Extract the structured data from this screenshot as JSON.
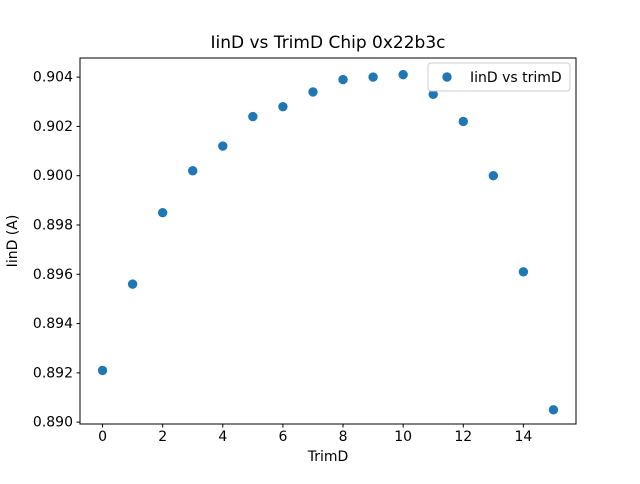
{
  "figure": {
    "background": "#ffffff",
    "spine_color": "#000000",
    "legend_border_color": "#cccccc",
    "legend_background": "#ffffff"
  },
  "chart_data": {
    "type": "scatter",
    "title": "IinD vs TrimD Chip 0x22b3c",
    "xlabel": "TrimD",
    "ylabel": "IinD (A)",
    "series": [
      {
        "name": "IinD vs trimD",
        "color": "#1f77b4",
        "marker": "circle",
        "x": [
          0,
          1,
          2,
          3,
          4,
          5,
          6,
          7,
          8,
          9,
          10,
          11,
          12,
          13,
          14,
          15
        ],
        "y": [
          0.8921,
          0.8956,
          0.8985,
          0.9002,
          0.9012,
          0.9024,
          0.9028,
          0.9034,
          0.9039,
          0.904,
          0.9041,
          0.9033,
          0.9022,
          0.9,
          0.8961,
          0.8905
        ]
      }
    ],
    "xlim": [
      -0.75,
      15.75
    ],
    "ylim": [
      0.889925,
      0.904775
    ],
    "xticks": [
      0,
      2,
      4,
      6,
      8,
      10,
      12,
      14
    ],
    "yticks": [
      0.89,
      0.892,
      0.894,
      0.896,
      0.898,
      0.9,
      0.902,
      0.904
    ],
    "ytick_decimals": 3,
    "grid": false,
    "legend": {
      "position": "upper-right",
      "entries": [
        "IinD vs trimD"
      ]
    }
  }
}
